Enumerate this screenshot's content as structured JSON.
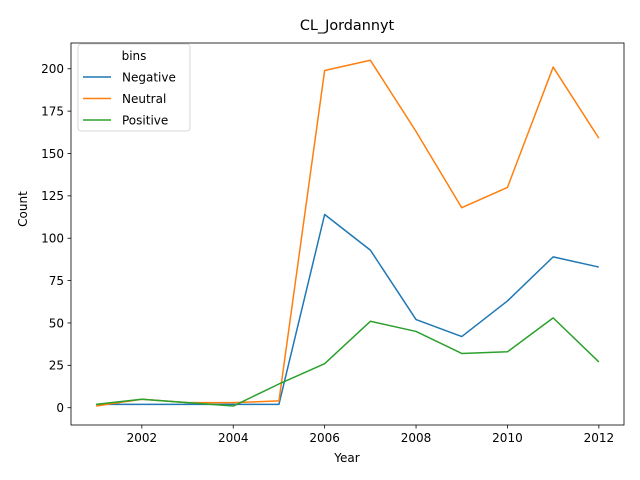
{
  "chart_data": {
    "type": "line",
    "title": "CL_Jordannyt",
    "xlabel": "Year",
    "ylabel": "Count",
    "x": [
      2001,
      2002,
      2003,
      2004,
      2005,
      2006,
      2007,
      2008,
      2009,
      2010,
      2011,
      2012
    ],
    "xlim": [
      2000.45,
      2012.55
    ],
    "ylim": [
      -10.2,
      215.2
    ],
    "xticks": [
      2002,
      2004,
      2006,
      2008,
      2010,
      2012
    ],
    "yticks": [
      0,
      25,
      50,
      75,
      100,
      125,
      150,
      175,
      200
    ],
    "grid": false,
    "legend": {
      "title": "bins",
      "position": "upper-left"
    },
    "series": [
      {
        "name": "Negative",
        "color": "#1f77b4",
        "values": [
          2,
          2,
          2,
          2,
          2,
          114,
          93,
          52,
          42,
          63,
          89,
          83
        ]
      },
      {
        "name": "Neutral",
        "color": "#ff7f0e",
        "values": [
          1,
          5,
          3,
          3,
          4,
          199,
          205,
          163,
          118,
          130,
          201,
          159
        ]
      },
      {
        "name": "Positive",
        "color": "#2ca02c",
        "values": [
          2,
          5,
          3,
          1,
          14,
          26,
          51,
          45,
          32,
          33,
          53,
          27
        ]
      }
    ]
  }
}
